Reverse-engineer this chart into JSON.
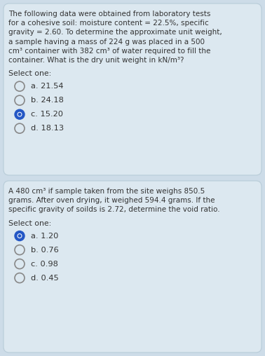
{
  "bg_color": "#cddce8",
  "card_color": "#dce8f0",
  "card_border_color": "#b8ccd8",
  "text_color": "#333333",
  "q1_text_lines": [
    "The following data were obtained from laboratory tests",
    "for a cohesive soil: moisture content = 22.5%, specific",
    "gravity = 2.60. To determine the approximate unit weight,",
    "a sample having a mass of 224 g was placed in a 500",
    "cm³ container with 382 cm³ of water required to fill the",
    "container. What is the dry unit weight in kN/m³?"
  ],
  "q1_select": "Select one:",
  "q1_options": [
    "a. 21.54",
    "b. 24.18",
    "c. 15.20",
    "d. 18.13"
  ],
  "q1_selected": 2,
  "q2_text_lines": [
    "A 480 cm³ if sample taken from the site weighs 850.5",
    "grams. After oven drying, it weighed 594.4 grams. If the",
    "specific gravity of soilds is 2.72, determine the void ratio."
  ],
  "q2_select": "Select one:",
  "q2_options": [
    "a. 1.20",
    "b. 0.76",
    "c. 0.98",
    "d. 0.45"
  ],
  "q2_selected": 0,
  "radio_fill_selected": "#2457c5",
  "radio_edge_unselected": "#888888",
  "font_size_text": 7.5,
  "font_size_select": 7.8,
  "font_size_option": 8.2
}
